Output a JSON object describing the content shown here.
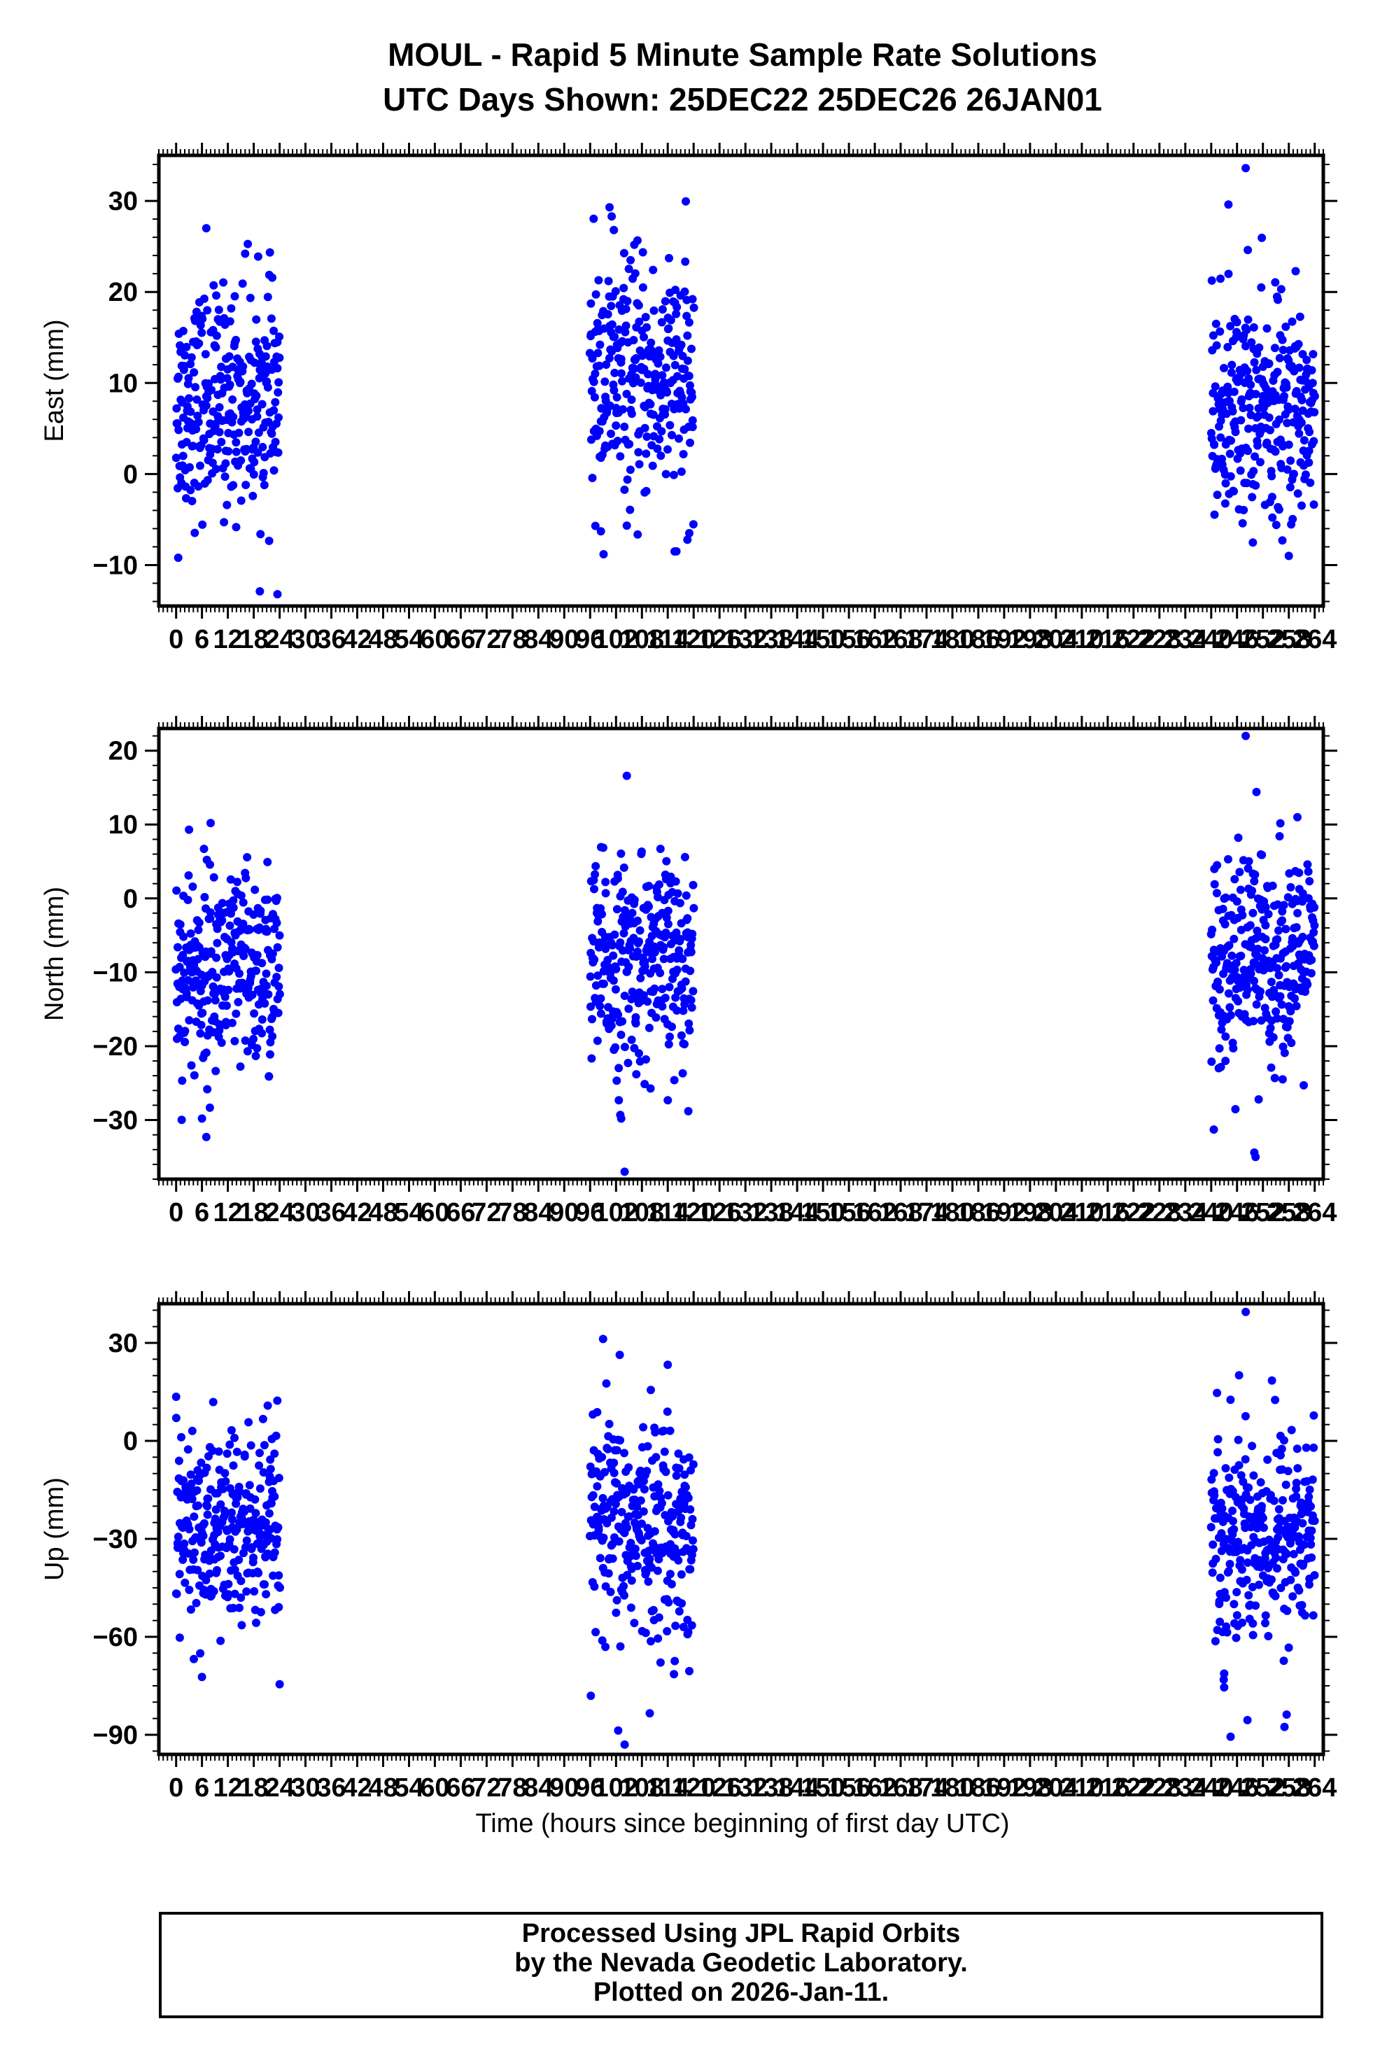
{
  "title_line1": "MOUL - Rapid 5 Minute Sample Rate Solutions",
  "title_line2": "UTC Days Shown:  25DEC22 25DEC26 26JAN01",
  "xlabel": "Time (hours since beginning of first day UTC)",
  "footer": {
    "line1": "Processed Using JPL Rapid Orbits",
    "line2": "by the Nevada Geodetic Laboratory.",
    "line3": "Plotted on 2026-Jan-11."
  },
  "colors": {
    "points": "#0000ff",
    "axes": "#000000",
    "background": "#ffffff"
  },
  "chart_data": [
    {
      "type": "scatter",
      "ylabel": "East (mm)",
      "xlim": [
        -4,
        266
      ],
      "ylim": [
        -14.5,
        35
      ],
      "yticks": [
        30,
        20,
        10,
        0,
        -10
      ],
      "xticks": [
        0,
        6,
        12,
        18,
        24,
        30,
        36,
        42,
        48,
        54,
        60,
        66,
        72,
        78,
        84,
        90,
        96,
        102,
        108,
        114,
        120,
        126,
        132,
        138,
        144,
        150,
        156,
        162,
        168,
        174,
        180,
        186,
        192,
        198,
        204,
        210,
        216,
        222,
        228,
        234,
        240,
        246,
        252,
        258,
        264
      ],
      "x_minor_step": 1,
      "y_minor_step": 2,
      "series": [
        {
          "clusters": [
            {
              "x_range": [
                0,
                24
              ],
              "mean": 8,
              "sd": 6
            },
            {
              "x_range": [
                96,
                120
              ],
              "mean": 10,
              "sd": 6.5
            },
            {
              "x_range": [
                240,
                264
              ],
              "mean": 7,
              "sd": 6
            }
          ],
          "points_per_cluster": 288,
          "outliers": [
            {
              "x": 23.5,
              "y": -13.2
            },
            {
              "x": 0.5,
              "y": -9.2
            },
            {
              "x": 7,
              "y": 27
            },
            {
              "x": 16,
              "y": 24.2
            },
            {
              "x": 100.5,
              "y": 29.3
            },
            {
              "x": 101,
              "y": 28.3
            },
            {
              "x": 101.5,
              "y": 26.8
            },
            {
              "x": 98.5,
              "y": -6.3
            },
            {
              "x": 116,
              "y": -8.5
            },
            {
              "x": 119,
              "y": -6.5
            },
            {
              "x": 244,
              "y": 29.6
            },
            {
              "x": 248,
              "y": 33.6
            },
            {
              "x": 248.5,
              "y": 24.6
            },
            {
              "x": 258,
              "y": -9
            },
            {
              "x": 256.5,
              "y": -7.3
            }
          ]
        }
      ]
    },
    {
      "type": "scatter",
      "ylabel": "North (mm)",
      "xlim": [
        -4,
        266
      ],
      "ylim": [
        -38,
        23
      ],
      "yticks": [
        20,
        10,
        0,
        -10,
        -20,
        -30
      ],
      "xticks": [
        0,
        6,
        12,
        18,
        24,
        30,
        36,
        42,
        48,
        54,
        60,
        66,
        72,
        78,
        84,
        90,
        96,
        102,
        108,
        114,
        120,
        126,
        132,
        138,
        144,
        150,
        156,
        162,
        168,
        174,
        180,
        186,
        192,
        198,
        204,
        210,
        216,
        222,
        228,
        234,
        240,
        246,
        252,
        258,
        264
      ],
      "x_minor_step": 1,
      "y_minor_step": 2,
      "series": [
        {
          "clusters": [
            {
              "x_range": [
                0,
                24
              ],
              "mean": -10,
              "sd": 7
            },
            {
              "x_range": [
                96,
                120
              ],
              "mean": -9,
              "sd": 7
            },
            {
              "x_range": [
                240,
                264
              ],
              "mean": -8,
              "sd": 7
            }
          ],
          "points_per_cluster": 288,
          "outliers": [
            {
              "x": 7,
              "y": -32.3
            },
            {
              "x": 6,
              "y": -29.8
            },
            {
              "x": 3,
              "y": 9.3
            },
            {
              "x": 8,
              "y": 10.2
            },
            {
              "x": 104,
              "y": -37
            },
            {
              "x": 104.5,
              "y": 16.6
            },
            {
              "x": 103,
              "y": -29.3
            },
            {
              "x": 103.2,
              "y": -29.8
            },
            {
              "x": 248,
              "y": 22
            },
            {
              "x": 250.5,
              "y": 14.4
            },
            {
              "x": 250,
              "y": -34.4
            },
            {
              "x": 250.3,
              "y": -35
            },
            {
              "x": 251,
              "y": -27.2
            }
          ]
        }
      ]
    },
    {
      "type": "scatter",
      "ylabel": "Up (mm)",
      "xlim": [
        -4,
        266
      ],
      "ylim": [
        -96,
        42
      ],
      "yticks": [
        30,
        0,
        -30,
        -60,
        -90
      ],
      "xticks": [
        0,
        6,
        12,
        18,
        24,
        30,
        36,
        42,
        48,
        54,
        60,
        66,
        72,
        78,
        84,
        90,
        96,
        102,
        108,
        114,
        120,
        126,
        132,
        138,
        144,
        150,
        156,
        162,
        168,
        174,
        180,
        186,
        192,
        198,
        204,
        210,
        216,
        222,
        228,
        234,
        240,
        246,
        252,
        258,
        264
      ],
      "x_minor_step": 1,
      "y_minor_step": 5,
      "series": [
        {
          "clusters": [
            {
              "x_range": [
                0,
                24
              ],
              "mean": -28,
              "sd": 16
            },
            {
              "x_range": [
                96,
                120
              ],
              "mean": -27,
              "sd": 17
            },
            {
              "x_range": [
                240,
                264
              ],
              "mean": -28,
              "sd": 17
            }
          ],
          "points_per_cluster": 288,
          "outliers": [
            {
              "x": 6,
              "y": -72.3
            },
            {
              "x": 24,
              "y": -74.5
            },
            {
              "x": 0,
              "y": 13.5
            },
            {
              "x": 99,
              "y": 31.2
            },
            {
              "x": 102.5,
              "y": -88.7
            },
            {
              "x": 104,
              "y": -93
            },
            {
              "x": 114,
              "y": 23.3
            },
            {
              "x": 119,
              "y": -70.5
            },
            {
              "x": 248,
              "y": 39.5
            },
            {
              "x": 244.5,
              "y": -90.6
            },
            {
              "x": 257.5,
              "y": -83.8
            },
            {
              "x": 257,
              "y": -87.6
            },
            {
              "x": 243,
              "y": -75.5
            }
          ]
        }
      ]
    }
  ]
}
